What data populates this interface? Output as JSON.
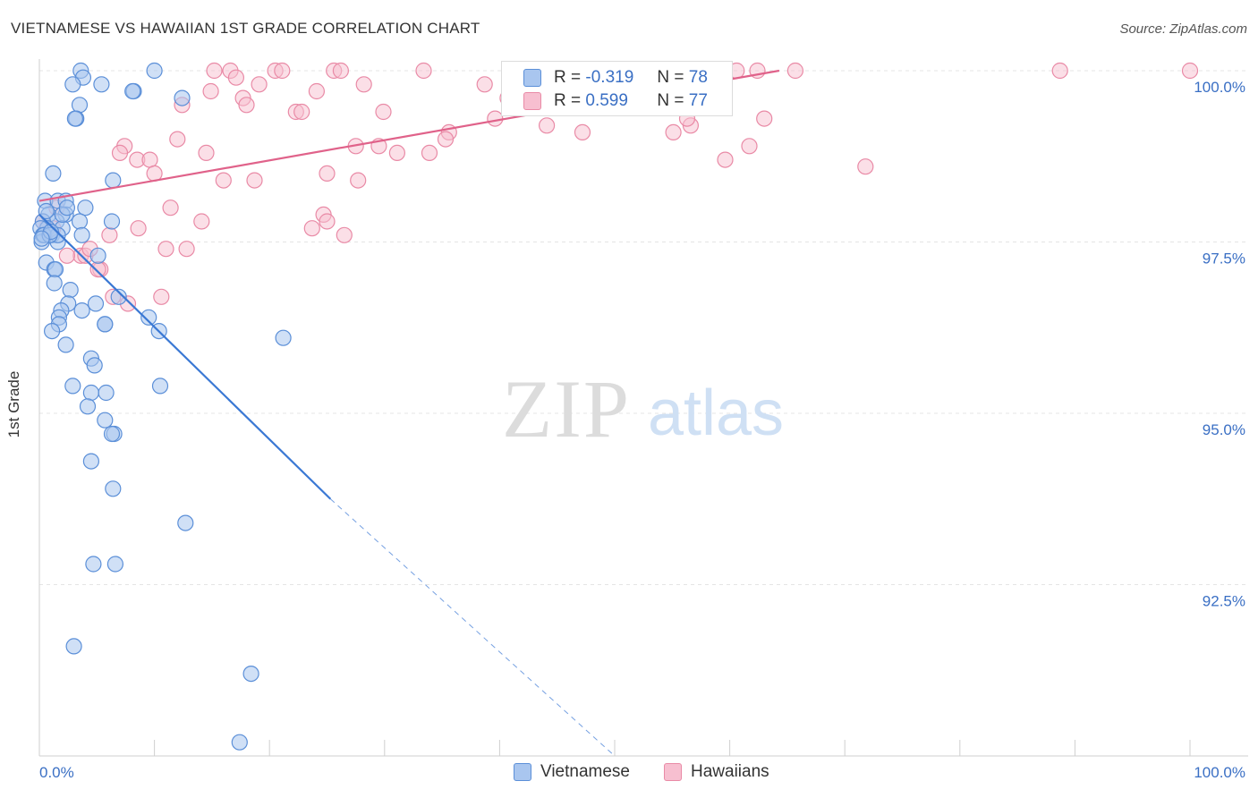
{
  "title": "VIETNAMESE VS HAWAIIAN 1ST GRADE CORRELATION CHART",
  "source": "Source: ZipAtlas.com",
  "watermark": {
    "zip": "ZIP",
    "atlas": "atlas"
  },
  "legend": {
    "rows": [
      {
        "r_label": "R =",
        "r_value": "-0.319",
        "n_label": "N =",
        "n_value": "78"
      },
      {
        "r_label": "R =",
        "r_value": "0.599",
        "n_label": "N =",
        "n_value": "77"
      }
    ]
  },
  "bottom_legend": [
    "Vietnamese",
    "Hawaiians"
  ],
  "colors": {
    "vietnamese_fill": "#a9c6ef",
    "vietnamese_stroke": "#5b8fd8",
    "vietnamese_line": "#3a78d4",
    "hawaiian_fill": "#f7bfd0",
    "hawaiian_stroke": "#e98aa6",
    "hawaiian_line": "#e0628a",
    "axis_text": "#3a6fc4"
  },
  "chart_data": {
    "type": "scatter",
    "title": "VIETNAMESE VS HAWAIIAN 1ST GRADE CORRELATION CHART",
    "xlabel": "",
    "ylabel": "1st Grade",
    "xlim": [
      0,
      100
    ],
    "ylim": [
      90.1,
      100.2
    ],
    "x_tick_labels": [
      "0.0%",
      "100.0%"
    ],
    "y_ticks": [
      92.5,
      95.0,
      97.5,
      100.0
    ],
    "y_tick_labels": [
      "92.5%",
      "95.0%",
      "97.5%",
      "100.0%"
    ],
    "series": [
      {
        "name": "Vietnamese",
        "r": -0.319,
        "n": 78,
        "trend": {
          "x0": 0,
          "y0": 97.9,
          "x1": 25.3,
          "y1": 93.75,
          "dash_to_x": 50,
          "dash_to_y": 89.9
        },
        "points": [
          [
            3.6,
            100
          ],
          [
            10,
            100
          ],
          [
            3.8,
            99.9
          ],
          [
            5.4,
            99.8
          ],
          [
            2.9,
            99.8
          ],
          [
            8.2,
            99.7
          ],
          [
            8.1,
            99.7
          ],
          [
            12.4,
            99.6
          ],
          [
            3.5,
            99.5
          ],
          [
            3.2,
            99.3
          ],
          [
            3.1,
            99.3
          ],
          [
            1.2,
            98.5
          ],
          [
            6.4,
            98.4
          ],
          [
            0.5,
            98.1
          ],
          [
            1.6,
            98.1
          ],
          [
            2.3,
            98.1
          ],
          [
            4,
            98
          ],
          [
            0.8,
            97.9
          ],
          [
            2.3,
            97.9
          ],
          [
            1.5,
            97.8
          ],
          [
            3.5,
            97.8
          ],
          [
            6.3,
            97.8
          ],
          [
            0.3,
            97.8
          ],
          [
            0.7,
            97.7
          ],
          [
            0.1,
            97.7
          ],
          [
            2,
            97.7
          ],
          [
            3.7,
            97.6
          ],
          [
            0.4,
            97.6
          ],
          [
            0.3,
            97.6
          ],
          [
            1.1,
            97.6
          ],
          [
            1.6,
            97.5
          ],
          [
            0.2,
            97.5
          ],
          [
            5.1,
            97.3
          ],
          [
            0.6,
            97.2
          ],
          [
            1.3,
            97.1
          ],
          [
            1.4,
            97.1
          ],
          [
            1.3,
            96.9
          ],
          [
            2.7,
            96.8
          ],
          [
            6.9,
            96.7
          ],
          [
            2.5,
            96.6
          ],
          [
            4.9,
            96.6
          ],
          [
            1.9,
            96.5
          ],
          [
            3.7,
            96.5
          ],
          [
            1.7,
            96.4
          ],
          [
            9.5,
            96.4
          ],
          [
            5.7,
            96.3
          ],
          [
            1.7,
            96.3
          ],
          [
            5.7,
            96.3
          ],
          [
            1.1,
            96.2
          ],
          [
            10.4,
            96.2
          ],
          [
            21.2,
            96.1
          ],
          [
            2.3,
            96
          ],
          [
            4.5,
            95.8
          ],
          [
            4.8,
            95.7
          ],
          [
            2.9,
            95.4
          ],
          [
            10.5,
            95.4
          ],
          [
            4.5,
            95.3
          ],
          [
            5.8,
            95.3
          ],
          [
            4.2,
            95.1
          ],
          [
            5.7,
            94.9
          ],
          [
            6.5,
            94.7
          ],
          [
            6.3,
            94.7
          ],
          [
            4.5,
            94.3
          ],
          [
            6.4,
            93.9
          ],
          [
            12.7,
            93.4
          ],
          [
            6.6,
            92.8
          ],
          [
            4.7,
            92.8
          ],
          [
            3,
            91.6
          ],
          [
            18.4,
            91.2
          ],
          [
            17.4,
            90.2
          ],
          [
            0.4,
            97.6
          ],
          [
            1.6,
            97.6
          ],
          [
            0.9,
            97.6
          ],
          [
            2.0,
            97.9
          ],
          [
            0.6,
            97.95
          ],
          [
            1.0,
            97.65
          ],
          [
            2.4,
            98.0
          ],
          [
            0.2,
            97.55
          ]
        ]
      },
      {
        "name": "Hawaiians",
        "r": 0.599,
        "n": 77,
        "trend": {
          "x0": 0,
          "y0": 98.1,
          "x1": 64.3,
          "y1": 100
        }
      }
    ]
  }
}
